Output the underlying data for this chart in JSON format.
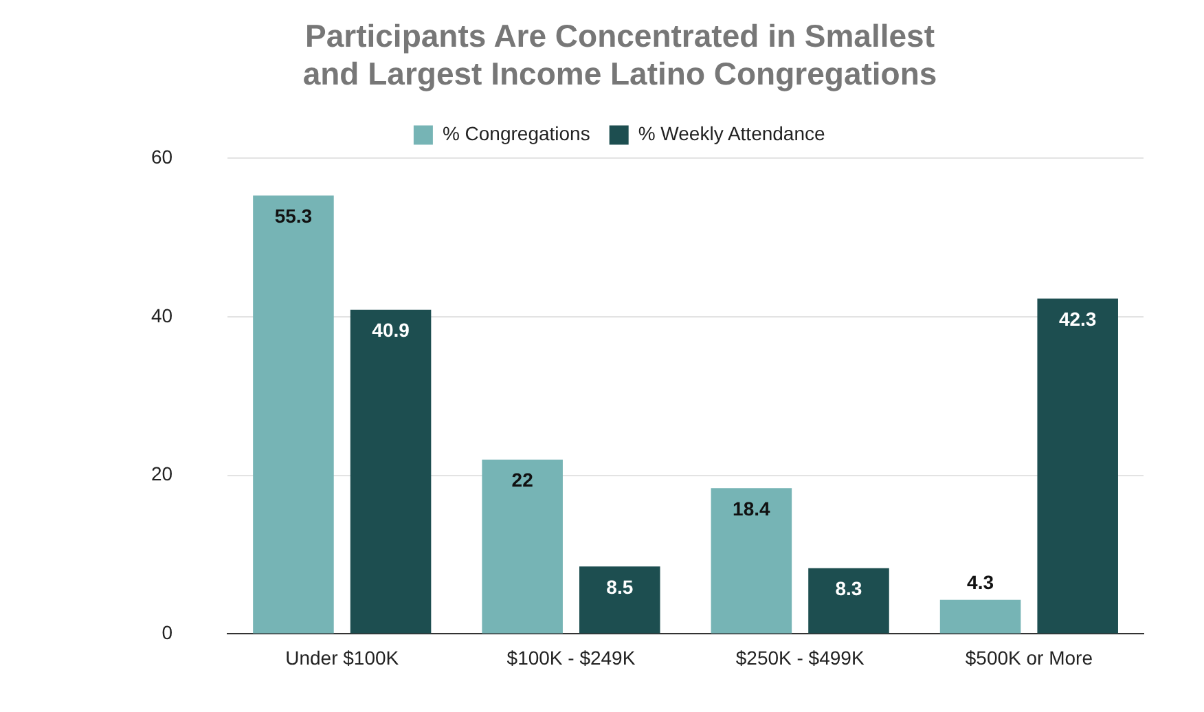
{
  "chart_data": {
    "type": "bar",
    "title": "Participants Are Concentrated in Smallest and Largest Income Latino Congregations",
    "categories": [
      "Under $100K",
      "$100K - $249K",
      "$250K - $499K",
      "$500K or More"
    ],
    "series": [
      {
        "name": "% Congregations",
        "color": "#76b4b5",
        "values": [
          55.3,
          22,
          18.4,
          4.3
        ]
      },
      {
        "name": "% Weekly Attendance",
        "color": "#1d4e50",
        "values": [
          40.9,
          8.5,
          8.3,
          42.3
        ]
      }
    ],
    "ylim": [
      0,
      60
    ],
    "yticks": [
      0,
      20,
      40,
      60
    ],
    "grid": "y",
    "legend": "top",
    "data_labels": true
  }
}
